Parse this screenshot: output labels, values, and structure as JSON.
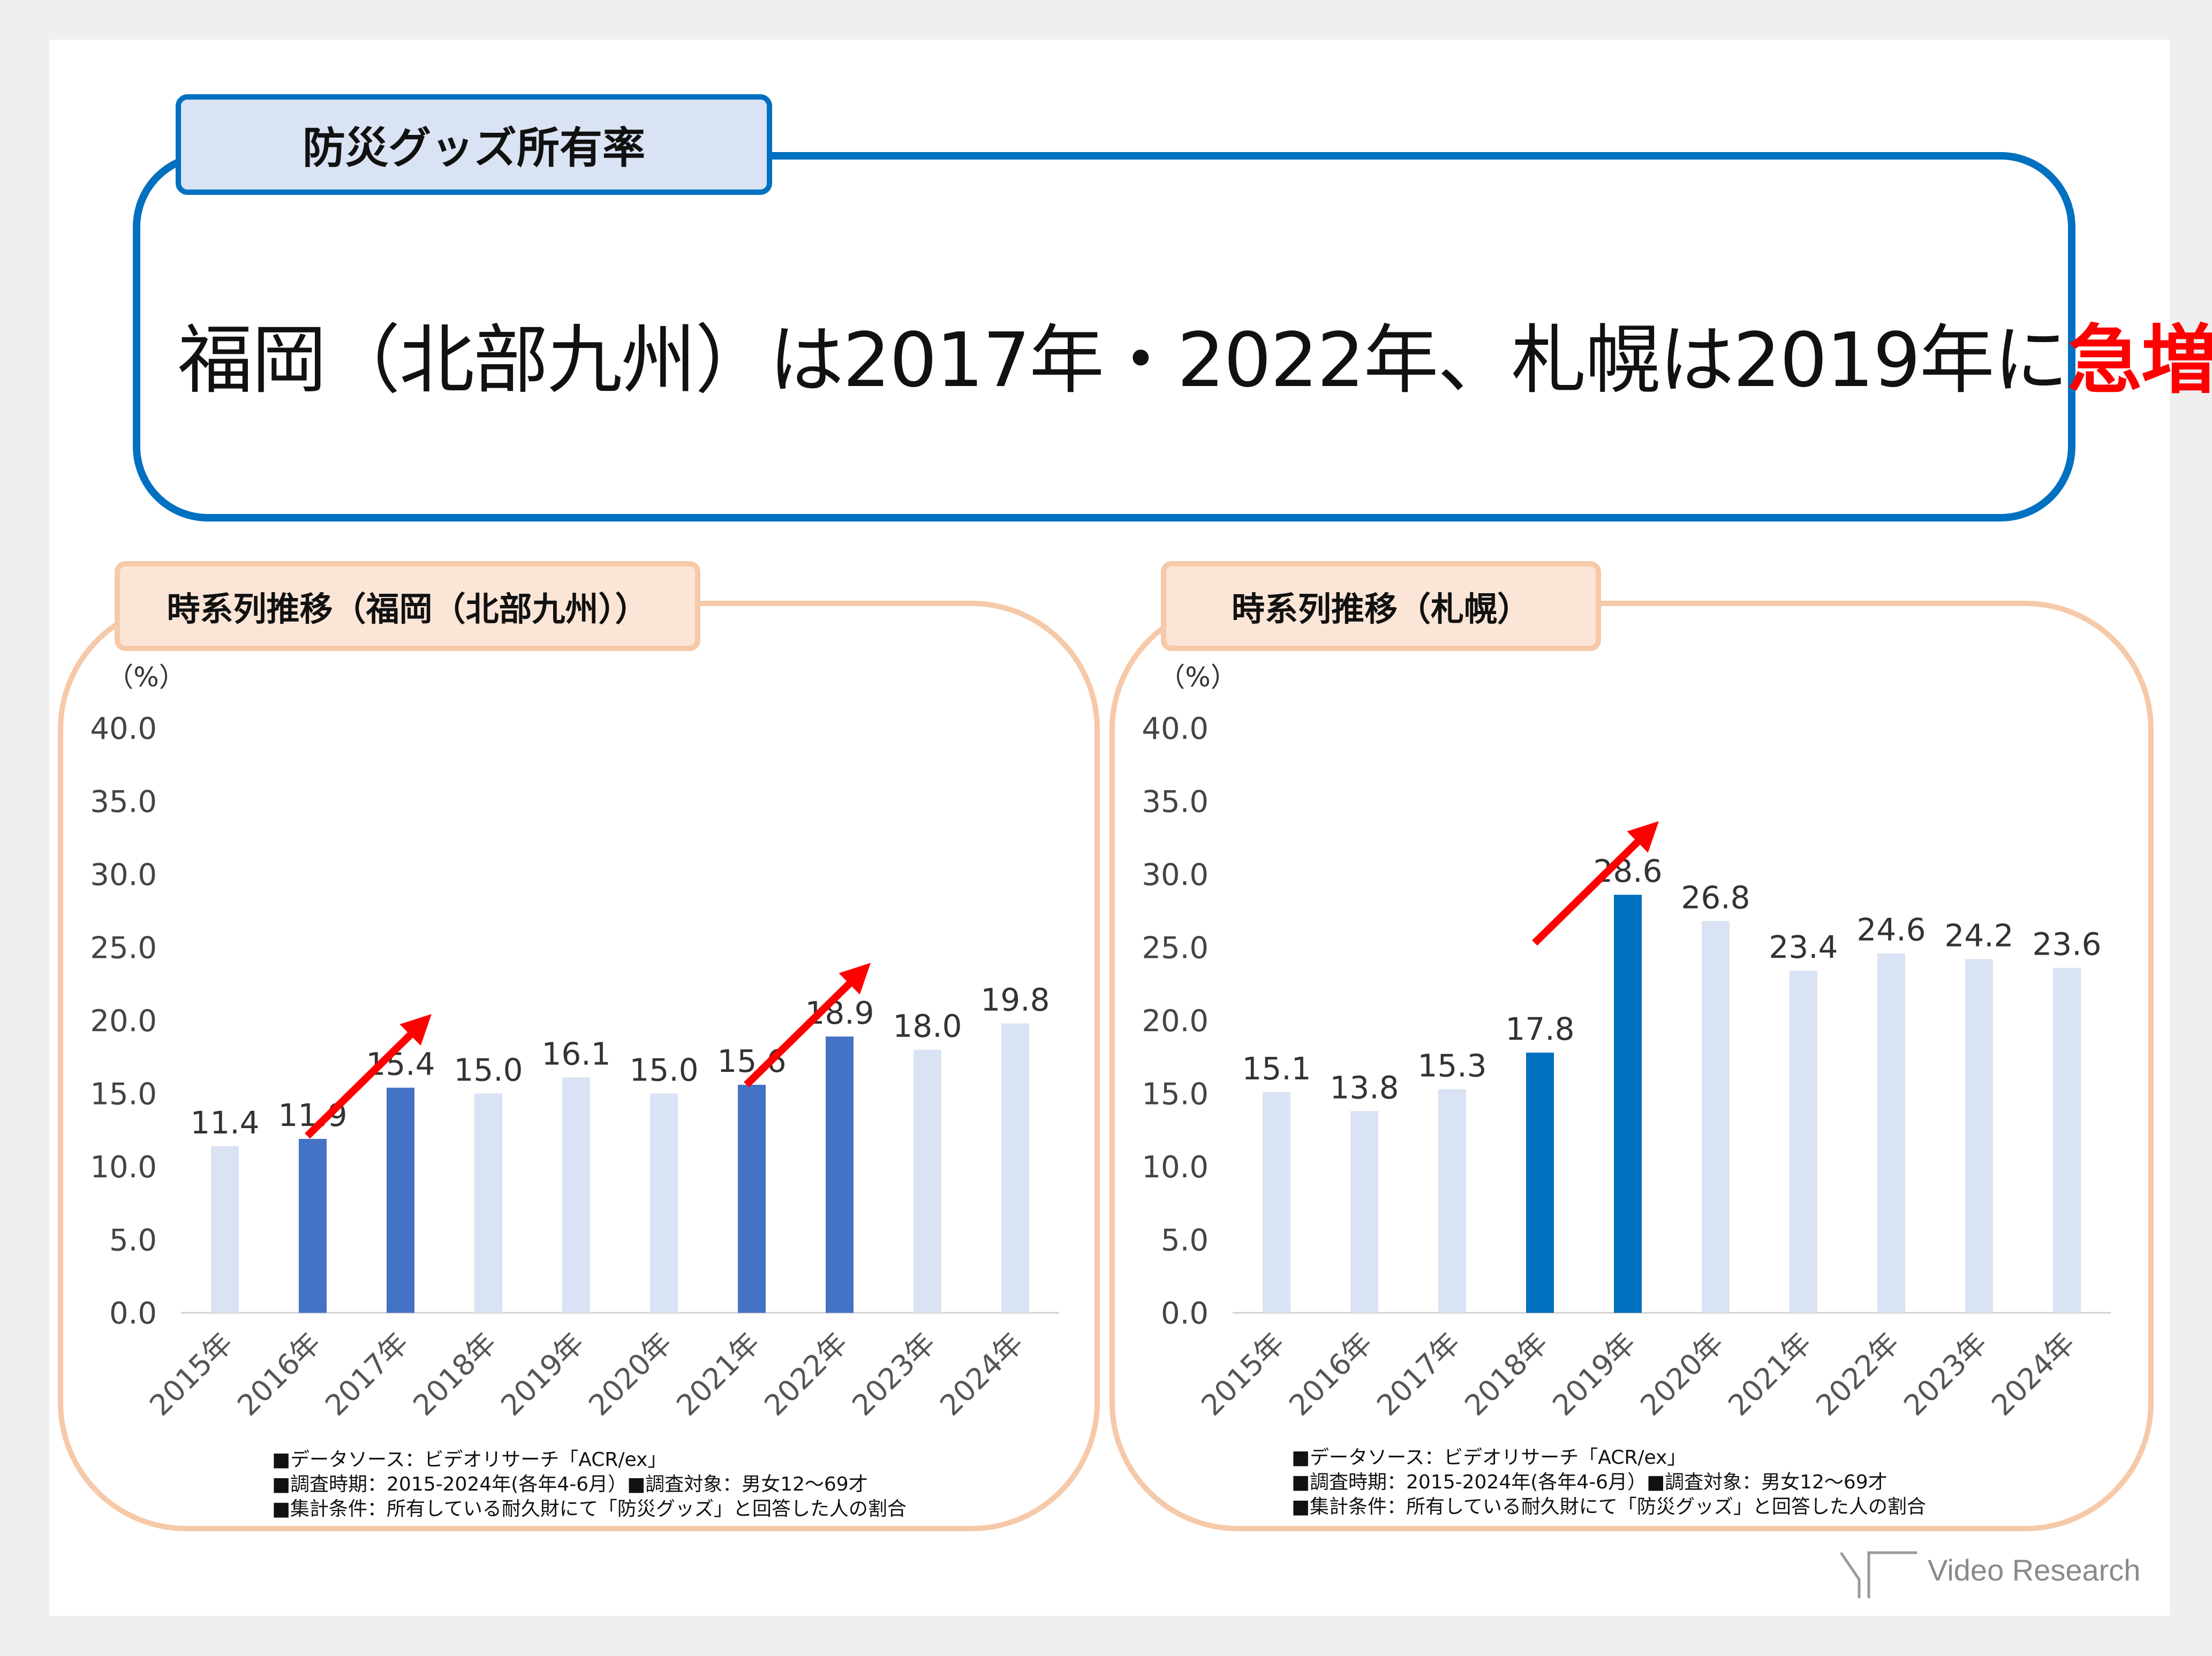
{
  "header": {
    "tab_label": "防災グッズ所有率",
    "headline_prefix": "福岡（北部九州）は2017年・2022年、札幌は2019年に",
    "headline_highlight": "急増"
  },
  "colors": {
    "primary_blue": "#0070c0",
    "bar_highlight_fukuoka": "#4472c4",
    "bar_highlight_sapporo": "#0070c0",
    "bar_light": "#dae3f3",
    "arrow": "#ff0000",
    "panel_border": "#f6c9a8",
    "panel_tab_fill": "#fbe5d6"
  },
  "notes": {
    "line1": "■データソース：ビデオリサーチ「ACR/ex」",
    "line2": "■調査時期：2015-2024年(各年4-6月）■調査対象：男女12～69才",
    "line3": "■集計条件：所有している耐久財にて「防災グッズ」と回答した人の割合"
  },
  "logo": {
    "text": "Video Research",
    "icon": "video-research-logo-icon"
  },
  "chart_data": [
    {
      "type": "bar",
      "title": "時系列推移（福岡（北部九州））",
      "ylabel": "（%）",
      "ylim": [
        0,
        40
      ],
      "yticks": [
        "0.0",
        "5.0",
        "10.0",
        "15.0",
        "20.0",
        "25.0",
        "30.0",
        "35.0",
        "40.0"
      ],
      "categories": [
        "2015年",
        "2016年",
        "2017年",
        "2018年",
        "2019年",
        "2020年",
        "2021年",
        "2022年",
        "2023年",
        "2024年"
      ],
      "values": [
        11.4,
        11.9,
        15.4,
        15.0,
        16.1,
        15.0,
        15.6,
        18.9,
        18.0,
        19.8
      ],
      "value_labels": [
        "11.4",
        "11.9",
        "15.4",
        "15.0",
        "16.1",
        "15.0",
        "15.6",
        "18.9",
        "18.0",
        "19.8"
      ],
      "highlighted": [
        "2016年",
        "2017年",
        "2021年",
        "2022年"
      ],
      "arrows": [
        [
          "2016年",
          "2017年"
        ],
        [
          "2021年",
          "2022年"
        ]
      ],
      "grid": false
    },
    {
      "type": "bar",
      "title": "時系列推移（札幌）",
      "ylabel": "（%）",
      "ylim": [
        0,
        40
      ],
      "yticks": [
        "0.0",
        "5.0",
        "10.0",
        "15.0",
        "20.0",
        "25.0",
        "30.0",
        "35.0",
        "40.0"
      ],
      "categories": [
        "2015年",
        "2016年",
        "2017年",
        "2018年",
        "2019年",
        "2020年",
        "2021年",
        "2022年",
        "2023年",
        "2024年"
      ],
      "values": [
        15.1,
        13.8,
        15.3,
        17.8,
        28.6,
        26.8,
        23.4,
        24.6,
        24.2,
        23.6
      ],
      "value_labels": [
        "15.1",
        "13.8",
        "15.3",
        "17.8",
        "28.6",
        "26.8",
        "23.4",
        "24.6",
        "24.2",
        "23.6"
      ],
      "highlighted": [
        "2018年",
        "2019年"
      ],
      "arrows": [
        [
          "2018年",
          "2019年"
        ]
      ],
      "grid": false
    }
  ]
}
